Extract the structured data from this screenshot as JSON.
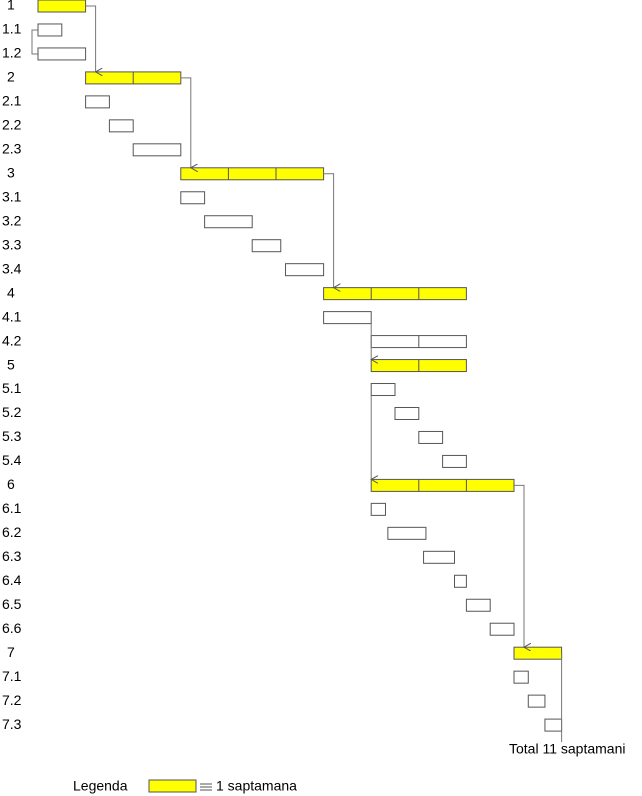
{
  "tasks": [
    {
      "label": "1",
      "start": 0,
      "duration": 1,
      "main": true
    },
    {
      "label": "1.1",
      "start": 0,
      "duration": 0.5,
      "main": false
    },
    {
      "label": "1.2",
      "start": 0,
      "duration": 1,
      "main": false
    },
    {
      "label": "2",
      "start": 1,
      "duration": 2,
      "main": true
    },
    {
      "label": "2.1",
      "start": 1,
      "duration": 0.5,
      "main": false
    },
    {
      "label": "2.2",
      "start": 1.5,
      "duration": 0.5,
      "main": false
    },
    {
      "label": "2.3",
      "start": 2,
      "duration": 1,
      "main": false
    },
    {
      "label": "3",
      "start": 3,
      "duration": 3,
      "main": true
    },
    {
      "label": "3.1",
      "start": 3,
      "duration": 0.5,
      "main": false
    },
    {
      "label": "3.2",
      "start": 3.5,
      "duration": 1,
      "main": false
    },
    {
      "label": "3.3",
      "start": 4.5,
      "duration": 0.6,
      "main": false
    },
    {
      "label": "3.4",
      "start": 5.2,
      "duration": 0.8,
      "main": false
    },
    {
      "label": "4",
      "start": 6,
      "duration": 3,
      "main": true
    },
    {
      "label": "4.1",
      "start": 6,
      "duration": 1,
      "main": false
    },
    {
      "label": "4.2",
      "start": 7,
      "duration": 2,
      "main": false
    },
    {
      "label": "5",
      "start": 7,
      "duration": 2,
      "main": true
    },
    {
      "label": "5.1",
      "start": 7,
      "duration": 0.5,
      "main": false
    },
    {
      "label": "5.2",
      "start": 7.5,
      "duration": 0.5,
      "main": false
    },
    {
      "label": "5.3",
      "start": 8,
      "duration": 0.5,
      "main": false
    },
    {
      "label": "5.4",
      "start": 8.5,
      "duration": 0.5,
      "main": false
    },
    {
      "label": "6",
      "start": 7,
      "duration": 3,
      "main": true
    },
    {
      "label": "6.1",
      "start": 7,
      "duration": 0.3,
      "main": false
    },
    {
      "label": "6.2",
      "start": 7.35,
      "duration": 0.8,
      "main": false
    },
    {
      "label": "6.3",
      "start": 8.1,
      "duration": 0.65,
      "main": false
    },
    {
      "label": "6.4",
      "start": 8.75,
      "duration": 0.25,
      "main": false
    },
    {
      "label": "6.5",
      "start": 9,
      "duration": 0.5,
      "main": false
    },
    {
      "label": "6.6",
      "start": 9.5,
      "duration": 0.5,
      "main": false
    },
    {
      "label": "7",
      "start": 10,
      "duration": 1,
      "main": true
    },
    {
      "label": "7.1",
      "start": 10,
      "duration": 0.3,
      "main": false
    },
    {
      "label": "7.2",
      "start": 10.3,
      "duration": 0.35,
      "main": false
    },
    {
      "label": "7.3",
      "start": 10.65,
      "duration": 0.35,
      "main": false
    }
  ],
  "total": "Total 11 saptamani",
  "legend": {
    "title": "Legenda",
    "label": "1 saptamana"
  },
  "main_color": "#ffff00"
}
